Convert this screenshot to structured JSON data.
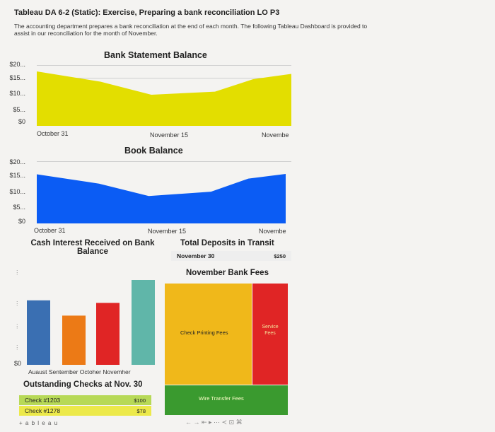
{
  "header": {
    "title": "Tableau DA 6-2 (Static): Exercise, Preparing a bank reconciliation LO P3",
    "intro": "The accounting department prepares a bank reconciliation at the end of each month. The following Tableau Dashboard is provided to assist in our reconciliation for the month of November."
  },
  "chart_data": [
    {
      "type": "area",
      "title": "Bank Statement Balance",
      "y_ticks": [
        "$20...",
        "$15...",
        "$10...",
        "$5...",
        "$0"
      ],
      "x_ticks": [
        "October 31",
        "November 15",
        "Novembe"
      ],
      "x": [
        0,
        0.25,
        0.45,
        0.7,
        0.85,
        1.0
      ],
      "values": [
        17500,
        14200,
        10000,
        11000,
        15000,
        16700
      ],
      "ylim": [
        0,
        20000
      ],
      "color": "#e3de00"
    },
    {
      "type": "area",
      "title": "Book Balance",
      "y_ticks": [
        "$20...",
        "$15...",
        "$10...",
        "$5...",
        "$0"
      ],
      "x_ticks": [
        "October 31",
        "November 15",
        "Novembe"
      ],
      "x": [
        0,
        0.25,
        0.45,
        0.7,
        0.85,
        1.0
      ],
      "values": [
        15800,
        12800,
        8800,
        10200,
        14400,
        15900
      ],
      "ylim": [
        0,
        20000
      ],
      "color": "#0b5cf4"
    },
    {
      "type": "bar",
      "title": "Cash Interest Received on Bank Balance",
      "categories": [
        "August",
        "September",
        "October",
        "November"
      ],
      "category_labels": "Auaust  Sentember  Octoher  Novemher",
      "values": [
        0.76,
        0.58,
        0.73,
        1.0
      ],
      "y_ticks": [
        "$0"
      ],
      "colors": [
        "#3a6fb2",
        "#ec7a16",
        "#e02525",
        "#60b6a9"
      ]
    },
    {
      "type": "table",
      "title": "Total Deposits in Transit",
      "rows": [
        {
          "label": "November 30",
          "value": "$250"
        }
      ]
    },
    {
      "type": "heatmap",
      "title": "November Bank Fees",
      "cells": [
        {
          "label": "Check Printing Fees",
          "color": "#f0b81a"
        },
        {
          "label": "Service Fees",
          "label_lines": [
            "Service",
            "Fees"
          ],
          "color": "#e02525"
        },
        {
          "label": "Wire Transfer Fees",
          "color": "#3a9a2f"
        }
      ]
    },
    {
      "type": "table",
      "title": "Outstanding Checks at Nov. 30",
      "rows": [
        {
          "label": "Check #1203",
          "value": "$100",
          "color": "#b7d957"
        },
        {
          "label": "Check #1278",
          "value": "$78",
          "color": "#ece94a"
        }
      ]
    }
  ],
  "footer": {
    "brand": "+ a b l e a u",
    "toolbar_glyphs": "←  →  ⇤  ▸  ⋯  ≺  ⊡  ⌘"
  }
}
